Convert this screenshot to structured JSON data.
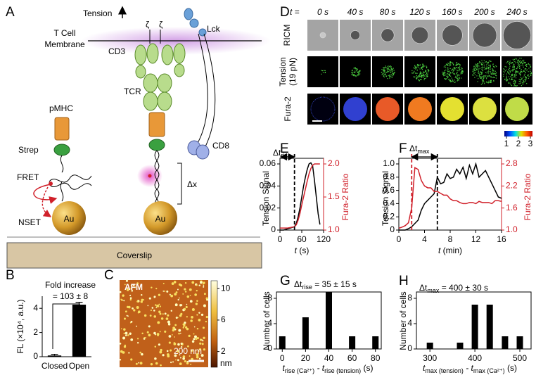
{
  "panel_labels": [
    "A",
    "B",
    "C",
    "D",
    "E",
    "F",
    "G",
    "H"
  ],
  "diagram": {
    "tension": "Tension",
    "membrane_line1": "T Cell",
    "membrane_line2": "Membrane",
    "cd3": "CD3",
    "zeta1": "ζ",
    "zeta2": "ζ",
    "lck": "Lck",
    "tcr": "TCR",
    "cd8": "CD8",
    "pmhc": "pMHC",
    "strep": "Strep",
    "fret": "FRET",
    "nset": "NSET",
    "au1": "Au",
    "au2": "Au",
    "dx": "Δx",
    "coverslip": "Coverslip"
  },
  "panel_c": {
    "label": "AFM",
    "scalebar": "200 nm",
    "colorbar_lim": [
      0,
      11
    ],
    "colorbar_ticks": [
      10,
      6,
      2
    ],
    "colorbar_unit": "nm"
  },
  "panel_d": {
    "t_label": "t =",
    "times": [
      "0 s",
      "40 s",
      "80 s",
      "120 s",
      "160 s",
      "200 s",
      "240 s"
    ],
    "ricm": "RICM",
    "tension": "Tension",
    "tension_force": "(19 pN)",
    "fura": "Fura-2",
    "colorbar_ticks": [
      1,
      2,
      3
    ]
  },
  "chart_data": [
    {
      "type": "bar",
      "ylabel": "FL (×10⁴, a.u.)",
      "categories": [
        "Closed",
        "Open"
      ],
      "values": [
        0.1,
        4.3
      ],
      "errors": [
        0.1,
        0.2
      ],
      "color": "#000000",
      "ylim": [
        0,
        5
      ],
      "yticks": [
        0,
        2,
        4
      ],
      "annotation": {
        "line1": "Fold increase",
        "line2": "= 103 ± 8"
      }
    },
    {
      "type": "line",
      "ylabel": "Tension Signal",
      "y2label": "Fura-2 Ratio",
      "xlabel": {
        "t": "t",
        "unit": " (s)"
      },
      "annotation": {
        "delta": "Δt",
        "sub": "rise"
      },
      "x": [
        0,
        10,
        20,
        30,
        40,
        45,
        50,
        55,
        60,
        65,
        70,
        75,
        80,
        85,
        90,
        95,
        100,
        105,
        110
      ],
      "series": [
        {
          "color": "#000000",
          "values": [
            0,
            0,
            0.001,
            0.002,
            0.003,
            0.006,
            0.012,
            0.02,
            0.03,
            0.04,
            0.048,
            0.055,
            0.06,
            0.061,
            0.058,
            0.045,
            0.03,
            0.015,
            0.005
          ]
        },
        {
          "color": "#d0202a",
          "axis": "y2",
          "values": [
            1.03,
            1.03,
            1.03,
            1.04,
            1.05,
            1.08,
            1.15,
            1.25,
            1.38,
            1.5,
            1.62,
            1.74,
            1.85,
            1.93,
            1.98,
            2.0,
            2.0,
            2.0,
            2.0
          ]
        }
      ],
      "vlines": [
        {
          "x": 40,
          "color": "#000000"
        }
      ],
      "xlim": [
        0,
        120
      ],
      "xticks": [
        0,
        60,
        120
      ],
      "ylim": [
        0,
        0.06
      ],
      "yticks": [
        0,
        0.02,
        0.04,
        0.06
      ],
      "y2lim": [
        1,
        2
      ],
      "y2ticks": [
        {
          "value": 1,
          "label": "1.0"
        },
        1.5,
        {
          "value": 2,
          "label": "2.0"
        }
      ]
    },
    {
      "type": "line",
      "ylabel": "Tension Signal",
      "y2label": "Fura-2 Ratio",
      "xlabel": {
        "t": "t",
        "unit": " (min)"
      },
      "annotation": {
        "delta": "Δt",
        "sub": "max"
      },
      "x": [
        0,
        0.5,
        1,
        1.5,
        2,
        2.5,
        3,
        3.5,
        4,
        4.5,
        5,
        5.5,
        6,
        6.5,
        7,
        7.5,
        8,
        8.5,
        9,
        9.5,
        10,
        10.5,
        11,
        11.5,
        12,
        12.5,
        13,
        13.5,
        14,
        14.5,
        15,
        15.5,
        16
      ],
      "series": [
        {
          "color": "#000000",
          "values": [
            0,
            0,
            0,
            0.02,
            0.05,
            0.1,
            0.15,
            0.3,
            0.4,
            0.45,
            0.5,
            0.55,
            0.8,
            0.7,
            0.72,
            0.85,
            0.78,
            0.8,
            0.92,
            0.85,
            0.95,
            0.78,
            0.98,
            0.85,
            1.0,
            0.8,
            0.85,
            0.9,
            0.8,
            0.7,
            0.6,
            0.5,
            0.48
          ]
        },
        {
          "color": "#d0202a",
          "axis": "y2",
          "values": [
            1.05,
            1.08,
            1.12,
            1.2,
            1.6,
            2.7,
            2.65,
            2.35,
            2.2,
            2.15,
            2.15,
            2.05,
            2.05,
            2.0,
            1.95,
            1.95,
            1.85,
            1.8,
            1.8,
            1.75,
            1.72,
            1.72,
            1.75,
            1.75,
            1.72,
            1.78,
            1.75,
            1.75,
            1.75,
            1.72,
            1.8,
            1.8,
            1.78
          ]
        }
      ],
      "vlines": [
        {
          "x": 2,
          "color": "#d0202a"
        },
        {
          "x": 6,
          "color": "#000000"
        }
      ],
      "xlim": [
        0,
        16
      ],
      "xticks": [
        0,
        4,
        8,
        12,
        16
      ],
      "ylim": [
        0,
        1
      ],
      "yticks": [
        0,
        0.2,
        0.4,
        0.6,
        0.8,
        {
          "value": 1,
          "label": "1.0"
        }
      ],
      "y2lim": [
        1,
        2.8
      ],
      "y2ticks": [
        {
          "value": 1,
          "label": "1.0"
        },
        1.6,
        2.2,
        2.8
      ]
    },
    {
      "type": "bar",
      "ylabel": "Number of cells",
      "annotation": {
        "delta": "Δt",
        "sub": "rise",
        "rest": " = 35 ± 15 s"
      },
      "xlabel": {
        "t1": "t",
        "sub1": "rise (Ca²⁺)",
        "mid": " - t",
        "sub2": "rise (tension)",
        "unit": " (s)"
      },
      "x": [
        0,
        20,
        40,
        60,
        80
      ],
      "values": [
        2,
        5,
        9,
        2,
        2
      ],
      "color": "#000000",
      "xlim": [
        -5,
        85
      ],
      "xticks": [
        0,
        20,
        40,
        60,
        80
      ],
      "ylim": [
        0,
        9
      ],
      "yticks": [
        0,
        4,
        8
      ]
    },
    {
      "type": "bar",
      "ylabel": "Number of cells",
      "annotation": {
        "delta": "Δt",
        "sub": "max",
        "rest": " = 400 ± 30 s"
      },
      "xlabel": {
        "t1": "t",
        "sub1": "max (tension)",
        "mid": " - t",
        "sub2": "max (Ca²⁺)",
        "unit": " (s)"
      },
      "x": [
        300,
        367,
        400,
        433,
        467,
        500
      ],
      "values": [
        1,
        1,
        7,
        7,
        2,
        2
      ],
      "color": "#000000",
      "xlim": [
        270,
        525
      ],
      "xticks": [
        300,
        400,
        500
      ],
      "ylim": [
        0,
        9
      ],
      "yticks": [
        0,
        4,
        8
      ]
    }
  ]
}
